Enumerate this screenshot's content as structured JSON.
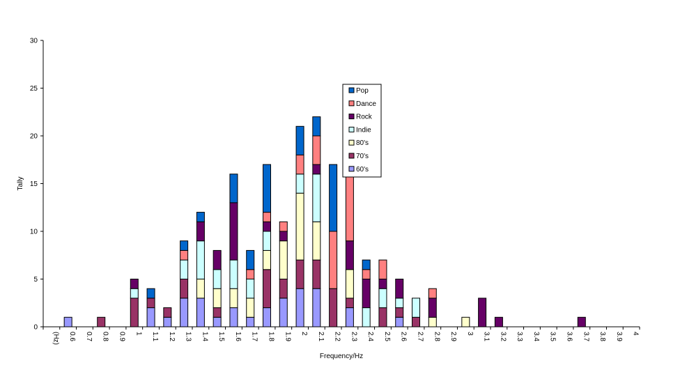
{
  "chart_data": {
    "type": "bar",
    "stacked": true,
    "title": "",
    "xlabel": "Frequency/Hz",
    "ylabel": "Tally",
    "ylim": [
      0,
      30
    ],
    "yticks": [
      "0",
      "5",
      "10",
      "15",
      "20",
      "25",
      "30"
    ],
    "grid": false,
    "legend_position": "top-center",
    "categories": [
      "(Hz)",
      "0.6",
      "0.7",
      "0.8",
      "0.9",
      "1",
      "1.1",
      "1.2",
      "1.3",
      "1.4",
      "1.5",
      "1.6",
      "1.7",
      "1.8",
      "1.9",
      "2",
      "2.1",
      "2.2",
      "2.3",
      "2.4",
      "2.5",
      "2.6",
      "2.7",
      "2.8",
      "2.9",
      "3",
      "3.1",
      "3.2",
      "3.3",
      "3.4",
      "3.5",
      "3.6",
      "3.7",
      "3.8",
      "3.9",
      "4"
    ],
    "series": [
      {
        "name": "60's",
        "color": "#9999ff",
        "values": [
          0,
          1,
          0,
          0,
          0,
          0,
          2,
          1,
          3,
          3,
          1,
          2,
          1,
          2,
          3,
          4,
          4,
          0,
          2,
          0,
          0,
          1,
          0,
          0,
          0,
          0,
          0,
          0,
          0,
          0,
          0,
          0,
          0,
          0,
          0,
          0
        ]
      },
      {
        "name": "70's",
        "color": "#993366",
        "values": [
          0,
          0,
          0,
          1,
          0,
          3,
          1,
          1,
          2,
          0,
          1,
          0,
          0,
          4,
          2,
          3,
          3,
          4,
          1,
          0,
          2,
          1,
          1,
          0,
          0,
          0,
          0,
          0,
          0,
          0,
          0,
          0,
          0,
          0,
          0,
          0
        ]
      },
      {
        "name": "80's",
        "color": "#ffffcc",
        "values": [
          0,
          0,
          0,
          0,
          0,
          0,
          0,
          0,
          0,
          2,
          2,
          2,
          2,
          2,
          4,
          7,
          4,
          0,
          3,
          0,
          0,
          0,
          0,
          1,
          0,
          1,
          0,
          0,
          0,
          0,
          0,
          0,
          0,
          0,
          0,
          0
        ]
      },
      {
        "name": "Indie",
        "color": "#ccffff",
        "values": [
          0,
          0,
          0,
          0,
          0,
          1,
          0,
          0,
          2,
          4,
          2,
          3,
          2,
          2,
          0,
          2,
          5,
          0,
          0,
          2,
          2,
          1,
          2,
          0,
          0,
          0,
          0,
          0,
          0,
          0,
          0,
          0,
          0,
          0,
          0,
          0
        ]
      },
      {
        "name": "Rock",
        "color": "#660066",
        "values": [
          0,
          0,
          0,
          0,
          0,
          1,
          0,
          0,
          0,
          2,
          2,
          6,
          0,
          1,
          1,
          0,
          1,
          0,
          3,
          3,
          1,
          2,
          0,
          2,
          0,
          0,
          3,
          1,
          0,
          0,
          0,
          0,
          1,
          0,
          0,
          0
        ]
      },
      {
        "name": "Dance",
        "color": "#ff8080",
        "values": [
          0,
          0,
          0,
          0,
          0,
          0,
          0,
          0,
          1,
          0,
          0,
          0,
          1,
          1,
          1,
          2,
          3,
          6,
          7,
          1,
          2,
          0,
          0,
          1,
          0,
          0,
          0,
          0,
          0,
          0,
          0,
          0,
          0,
          0,
          0,
          0
        ]
      },
      {
        "name": "Pop",
        "color": "#0066cc",
        "values": [
          0,
          0,
          0,
          0,
          0,
          0,
          1,
          0,
          1,
          1,
          0,
          3,
          2,
          5,
          0,
          3,
          2,
          7,
          0,
          1,
          0,
          0,
          0,
          0,
          0,
          0,
          0,
          0,
          0,
          0,
          0,
          0,
          0,
          0,
          0,
          0
        ]
      }
    ],
    "legend_order": [
      "Pop",
      "Dance",
      "Rock",
      "Indie",
      "80's",
      "70's",
      "60's"
    ]
  }
}
